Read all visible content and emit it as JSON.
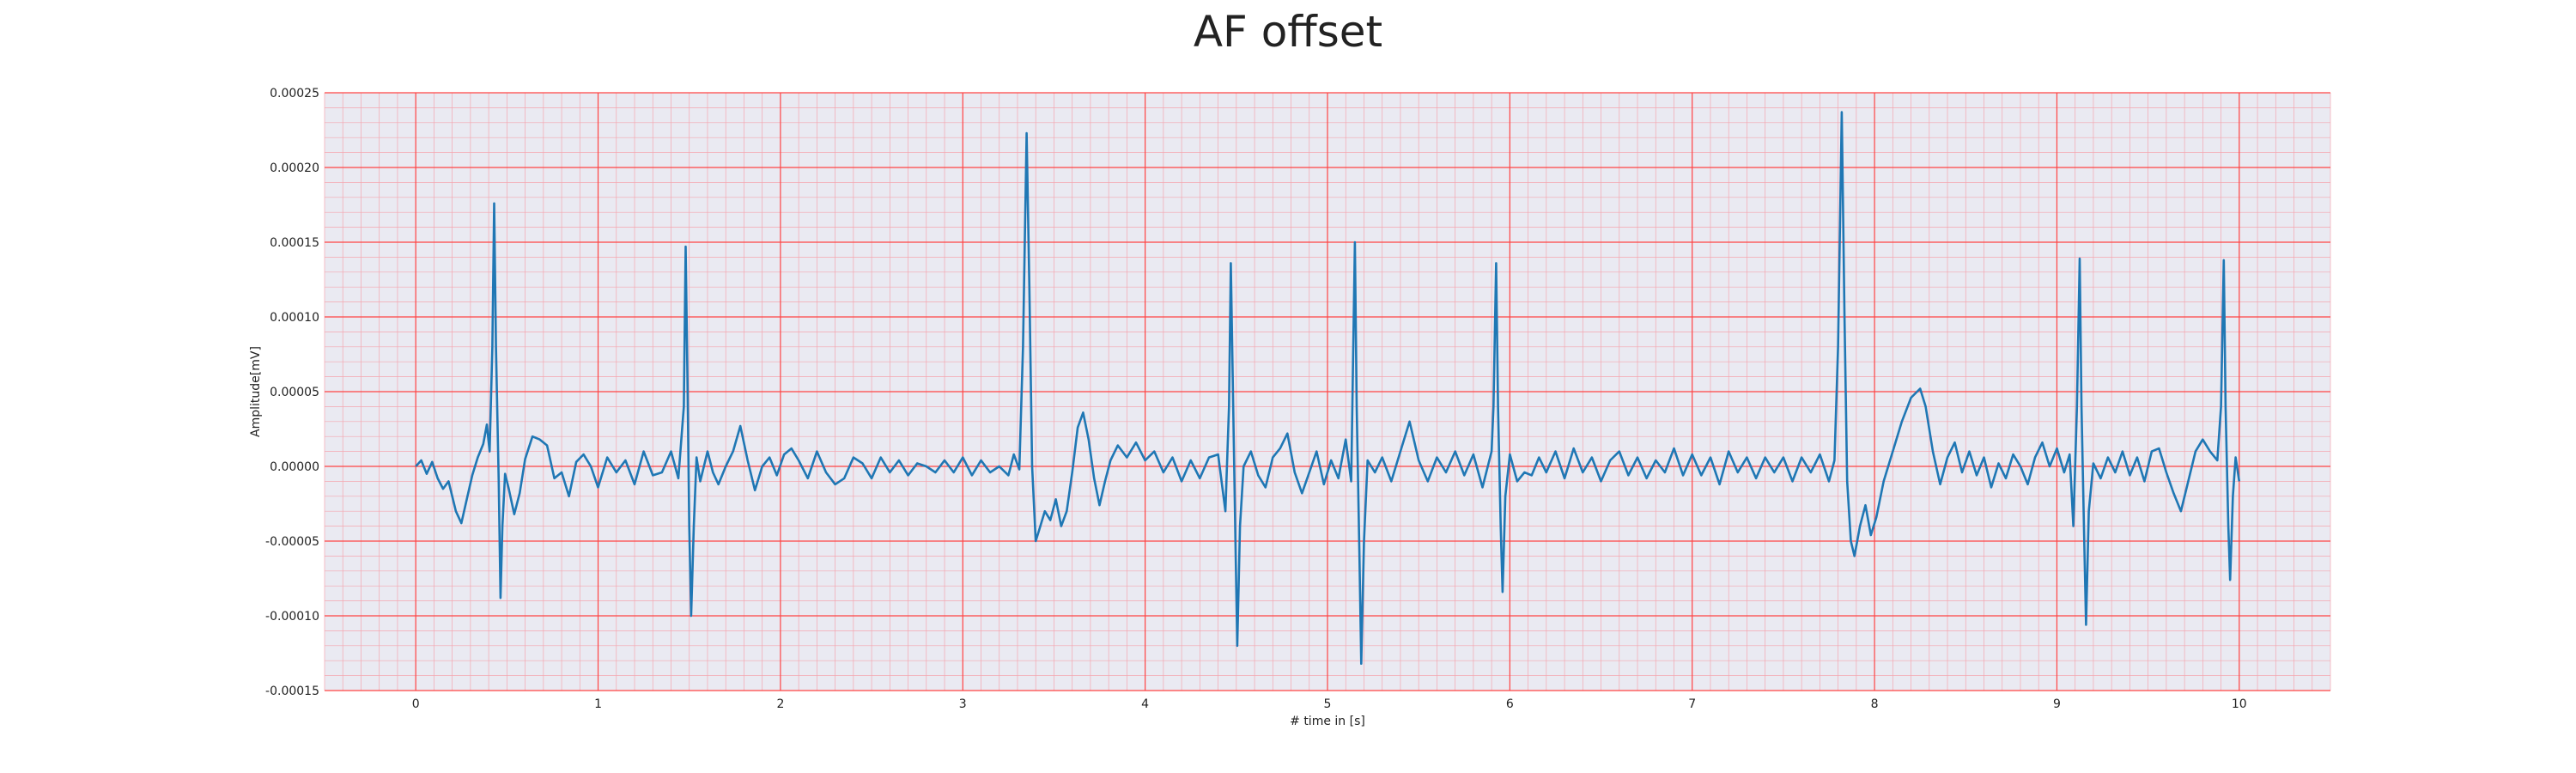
{
  "chart_data": {
    "type": "line",
    "title": "AF offset",
    "xlabel": "# time in [s]",
    "ylabel": "Amplitude[mV]",
    "xlim": [
      -0.5,
      10.5
    ],
    "ylim": [
      -0.00015,
      0.00025
    ],
    "x_ticks": [
      0,
      1,
      2,
      3,
      4,
      5,
      6,
      7,
      8,
      9,
      10
    ],
    "x_tick_labels": [
      "0",
      "1",
      "2",
      "3",
      "4",
      "5",
      "6",
      "7",
      "8",
      "9",
      "10"
    ],
    "y_ticks": [
      -0.00015,
      -0.0001,
      -5e-05,
      0,
      5e-05,
      0.0001,
      0.00015,
      0.0002,
      0.00025
    ],
    "y_tick_labels": [
      "-0.00015",
      "-0.00010",
      "-0.00005",
      "0.00000",
      "0.00005",
      "0.00010",
      "0.00015",
      "0.00020",
      "0.00025"
    ],
    "grid": "major and minor",
    "colors": {
      "line": "#1f77b4",
      "background": "#eaeaf2",
      "major_grid": "#ff4444",
      "minor_grid": "#f4a6b0"
    },
    "series": [
      {
        "values": [
          [
            0.0,
            0.0
          ],
          [
            0.03,
            4e-06
          ],
          [
            0.06,
            -5e-06
          ],
          [
            0.09,
            3e-06
          ],
          [
            0.12,
            -8e-06
          ],
          [
            0.15,
            -1.5e-05
          ],
          [
            0.18,
            -1e-05
          ],
          [
            0.22,
            -3e-05
          ],
          [
            0.25,
            -3.8e-05
          ],
          [
            0.28,
            -2.2e-05
          ],
          [
            0.31,
            -6e-06
          ],
          [
            0.34,
            6e-06
          ],
          [
            0.37,
            1.5e-05
          ],
          [
            0.39,
            2.8e-05
          ],
          [
            0.405,
            1e-05
          ],
          [
            0.42,
            8e-05
          ],
          [
            0.43,
            0.000176
          ],
          [
            0.44,
            8e-05
          ],
          [
            0.455,
            -1e-05
          ],
          [
            0.465,
            -8.8e-05
          ],
          [
            0.475,
            -4e-05
          ],
          [
            0.49,
            -5e-06
          ],
          [
            0.51,
            -1.5e-05
          ],
          [
            0.54,
            -3.2e-05
          ],
          [
            0.57,
            -1.8e-05
          ],
          [
            0.6,
            5e-06
          ],
          [
            0.64,
            2e-05
          ],
          [
            0.68,
            1.8e-05
          ],
          [
            0.72,
            1.4e-05
          ],
          [
            0.76,
            -8e-06
          ],
          [
            0.8,
            -4e-06
          ],
          [
            0.84,
            -2e-05
          ],
          [
            0.88,
            3e-06
          ],
          [
            0.92,
            8e-06
          ],
          [
            0.96,
            0.0
          ],
          [
            1.0,
            -1.4e-05
          ],
          [
            1.05,
            6e-06
          ],
          [
            1.1,
            -4e-06
          ],
          [
            1.15,
            4e-06
          ],
          [
            1.2,
            -1.2e-05
          ],
          [
            1.25,
            1e-05
          ],
          [
            1.3,
            -6e-06
          ],
          [
            1.35,
            -4e-06
          ],
          [
            1.4,
            1e-05
          ],
          [
            1.44,
            -8e-06
          ],
          [
            1.47,
            4e-05
          ],
          [
            1.48,
            0.000147
          ],
          [
            1.49,
            6e-05
          ],
          [
            1.5,
            -4e-05
          ],
          [
            1.51,
            -0.0001
          ],
          [
            1.525,
            -4e-05
          ],
          [
            1.54,
            6e-06
          ],
          [
            1.56,
            -1e-05
          ],
          [
            1.6,
            1e-05
          ],
          [
            1.63,
            -4e-06
          ],
          [
            1.66,
            -1.2e-05
          ],
          [
            1.7,
            0.0
          ],
          [
            1.74,
            1e-05
          ],
          [
            1.78,
            2.7e-05
          ],
          [
            1.82,
            4e-06
          ],
          [
            1.86,
            -1.6e-05
          ],
          [
            1.9,
            0.0
          ],
          [
            1.94,
            6e-06
          ],
          [
            1.98,
            -6e-06
          ],
          [
            2.02,
            8e-06
          ],
          [
            2.06,
            1.2e-05
          ],
          [
            2.1,
            4e-06
          ],
          [
            2.15,
            -8e-06
          ],
          [
            2.2,
            1e-05
          ],
          [
            2.25,
            -4e-06
          ],
          [
            2.3,
            -1.2e-05
          ],
          [
            2.35,
            -8e-06
          ],
          [
            2.4,
            6e-06
          ],
          [
            2.45,
            2e-06
          ],
          [
            2.5,
            -8e-06
          ],
          [
            2.55,
            6e-06
          ],
          [
            2.6,
            -4e-06
          ],
          [
            2.65,
            4e-06
          ],
          [
            2.7,
            -6e-06
          ],
          [
            2.75,
            2e-06
          ],
          [
            2.8,
            0.0
          ],
          [
            2.85,
            -4e-06
          ],
          [
            2.9,
            4e-06
          ],
          [
            2.95,
            -4e-06
          ],
          [
            3.0,
            6e-06
          ],
          [
            3.05,
            -6e-06
          ],
          [
            3.1,
            4e-06
          ],
          [
            3.15,
            -4e-06
          ],
          [
            3.2,
            0.0
          ],
          [
            3.25,
            -6e-06
          ],
          [
            3.28,
            8e-06
          ],
          [
            3.31,
            -2e-06
          ],
          [
            3.33,
            8e-05
          ],
          [
            3.35,
            0.000223
          ],
          [
            3.365,
            0.00012
          ],
          [
            3.38,
            0.0
          ],
          [
            3.4,
            -5e-05
          ],
          [
            3.42,
            -4.2e-05
          ],
          [
            3.45,
            -3e-05
          ],
          [
            3.48,
            -3.6e-05
          ],
          [
            3.51,
            -2.2e-05
          ],
          [
            3.54,
            -4e-05
          ],
          [
            3.57,
            -3e-05
          ],
          [
            3.6,
            -4e-06
          ],
          [
            3.63,
            2.6e-05
          ],
          [
            3.66,
            3.6e-05
          ],
          [
            3.69,
            1.8e-05
          ],
          [
            3.72,
            -8e-06
          ],
          [
            3.75,
            -2.6e-05
          ],
          [
            3.78,
            -1e-05
          ],
          [
            3.81,
            4e-06
          ],
          [
            3.85,
            1.4e-05
          ],
          [
            3.9,
            6e-06
          ],
          [
            3.95,
            1.6e-05
          ],
          [
            4.0,
            4e-06
          ],
          [
            4.05,
            1e-05
          ],
          [
            4.1,
            -4e-06
          ],
          [
            4.15,
            6e-06
          ],
          [
            4.2,
            -1e-05
          ],
          [
            4.25,
            4e-06
          ],
          [
            4.3,
            -8e-06
          ],
          [
            4.35,
            6e-06
          ],
          [
            4.4,
            8e-06
          ],
          [
            4.44,
            -3e-05
          ],
          [
            4.46,
            4e-05
          ],
          [
            4.47,
            0.000136
          ],
          [
            4.48,
            6e-05
          ],
          [
            4.495,
            -5e-05
          ],
          [
            4.505,
            -0.00012
          ],
          [
            4.52,
            -4e-05
          ],
          [
            4.54,
            0.0
          ],
          [
            4.58,
            1e-05
          ],
          [
            4.62,
            -6e-06
          ],
          [
            4.66,
            -1.4e-05
          ],
          [
            4.7,
            6e-06
          ],
          [
            4.74,
            1.2e-05
          ],
          [
            4.78,
            2.2e-05
          ],
          [
            4.82,
            -4e-06
          ],
          [
            4.86,
            -1.8e-05
          ],
          [
            4.9,
            -4e-06
          ],
          [
            4.94,
            1e-05
          ],
          [
            4.98,
            -1.2e-05
          ],
          [
            5.02,
            4e-06
          ],
          [
            5.06,
            -8e-06
          ],
          [
            5.1,
            1.8e-05
          ],
          [
            5.13,
            -1e-05
          ],
          [
            5.15,
            0.00015
          ],
          [
            5.16,
            4e-05
          ],
          [
            5.175,
            -6e-05
          ],
          [
            5.185,
            -0.000132
          ],
          [
            5.2,
            -5e-05
          ],
          [
            5.22,
            4e-06
          ],
          [
            5.26,
            -4e-06
          ],
          [
            5.3,
            6e-06
          ],
          [
            5.35,
            -1e-05
          ],
          [
            5.4,
            1e-05
          ],
          [
            5.45,
            3e-05
          ],
          [
            5.5,
            4e-06
          ],
          [
            5.55,
            -1e-05
          ],
          [
            5.6,
            6e-06
          ],
          [
            5.65,
            -4e-06
          ],
          [
            5.7,
            1e-05
          ],
          [
            5.75,
            -6e-06
          ],
          [
            5.8,
            8e-06
          ],
          [
            5.85,
            -1.4e-05
          ],
          [
            5.9,
            1e-05
          ],
          [
            5.91,
            4e-05
          ],
          [
            5.925,
            0.000136
          ],
          [
            5.935,
            4e-05
          ],
          [
            5.95,
            -4e-05
          ],
          [
            5.96,
            -8.4e-05
          ],
          [
            5.975,
            -2e-05
          ],
          [
            6.0,
            8e-06
          ],
          [
            6.04,
            -1e-05
          ],
          [
            6.08,
            -4e-06
          ],
          [
            6.12,
            -6e-06
          ],
          [
            6.16,
            6e-06
          ],
          [
            6.2,
            -4e-06
          ],
          [
            6.25,
            1e-05
          ],
          [
            6.3,
            -8e-06
          ],
          [
            6.35,
            1.2e-05
          ],
          [
            6.4,
            -4e-06
          ],
          [
            6.45,
            6e-06
          ],
          [
            6.5,
            -1e-05
          ],
          [
            6.55,
            4e-06
          ],
          [
            6.6,
            1e-05
          ],
          [
            6.65,
            -6e-06
          ],
          [
            6.7,
            6e-06
          ],
          [
            6.75,
            -8e-06
          ],
          [
            6.8,
            4e-06
          ],
          [
            6.85,
            -4e-06
          ],
          [
            6.9,
            1.2e-05
          ],
          [
            6.95,
            -6e-06
          ],
          [
            7.0,
            8e-06
          ],
          [
            7.05,
            -6e-06
          ],
          [
            7.1,
            6e-06
          ],
          [
            7.15,
            -1.2e-05
          ],
          [
            7.2,
            1e-05
          ],
          [
            7.25,
            -4e-06
          ],
          [
            7.3,
            6e-06
          ],
          [
            7.35,
            -8e-06
          ],
          [
            7.4,
            6e-06
          ],
          [
            7.45,
            -4e-06
          ],
          [
            7.5,
            6e-06
          ],
          [
            7.55,
            -1e-05
          ],
          [
            7.6,
            6e-06
          ],
          [
            7.65,
            -4e-06
          ],
          [
            7.7,
            8e-06
          ],
          [
            7.75,
            -1e-05
          ],
          [
            7.78,
            4e-06
          ],
          [
            7.8,
            8e-05
          ],
          [
            7.82,
            0.000237
          ],
          [
            7.835,
            0.0001
          ],
          [
            7.85,
            -1e-05
          ],
          [
            7.87,
            -5e-05
          ],
          [
            7.89,
            -6e-05
          ],
          [
            7.92,
            -4e-05
          ],
          [
            7.95,
            -2.6e-05
          ],
          [
            7.98,
            -4.6e-05
          ],
          [
            8.01,
            -3.4e-05
          ],
          [
            8.05,
            -1e-05
          ],
          [
            8.1,
            1e-05
          ],
          [
            8.15,
            3e-05
          ],
          [
            8.2,
            4.6e-05
          ],
          [
            8.25,
            5.2e-05
          ],
          [
            8.28,
            4e-05
          ],
          [
            8.32,
            1e-05
          ],
          [
            8.36,
            -1.2e-05
          ],
          [
            8.4,
            6e-06
          ],
          [
            8.44,
            1.6e-05
          ],
          [
            8.48,
            -4e-06
          ],
          [
            8.52,
            1e-05
          ],
          [
            8.56,
            -6e-06
          ],
          [
            8.6,
            6e-06
          ],
          [
            8.64,
            -1.4e-05
          ],
          [
            8.68,
            2e-06
          ],
          [
            8.72,
            -8e-06
          ],
          [
            8.76,
            8e-06
          ],
          [
            8.8,
            0.0
          ],
          [
            8.84,
            -1.2e-05
          ],
          [
            8.88,
            6e-06
          ],
          [
            8.92,
            1.6e-05
          ],
          [
            8.96,
            0.0
          ],
          [
            9.0,
            1.2e-05
          ],
          [
            9.04,
            -4e-06
          ],
          [
            9.07,
            8e-06
          ],
          [
            9.09,
            -4e-05
          ],
          [
            9.11,
            4e-05
          ],
          [
            9.125,
            0.000139
          ],
          [
            9.135,
            4e-05
          ],
          [
            9.15,
            -5e-05
          ],
          [
            9.16,
            -0.000106
          ],
          [
            9.175,
            -3e-05
          ],
          [
            9.2,
            2e-06
          ],
          [
            9.24,
            -8e-06
          ],
          [
            9.28,
            6e-06
          ],
          [
            9.32,
            -4e-06
          ],
          [
            9.36,
            1e-05
          ],
          [
            9.4,
            -6e-06
          ],
          [
            9.44,
            6e-06
          ],
          [
            9.48,
            -1e-05
          ],
          [
            9.52,
            1e-05
          ],
          [
            9.56,
            1.2e-05
          ],
          [
            9.6,
            -4e-06
          ],
          [
            9.64,
            -1.8e-05
          ],
          [
            9.68,
            -3e-05
          ],
          [
            9.72,
            -1e-05
          ],
          [
            9.76,
            1e-05
          ],
          [
            9.8,
            1.8e-05
          ],
          [
            9.84,
            1e-05
          ],
          [
            9.88,
            4e-06
          ],
          [
            9.9,
            4e-05
          ],
          [
            9.915,
            0.000138
          ],
          [
            9.925,
            4e-05
          ],
          [
            9.94,
            -4e-05
          ],
          [
            9.95,
            -7.6e-05
          ],
          [
            9.965,
            -2e-05
          ],
          [
            9.98,
            6e-06
          ],
          [
            10.0,
            -1e-05
          ]
        ]
      }
    ]
  }
}
